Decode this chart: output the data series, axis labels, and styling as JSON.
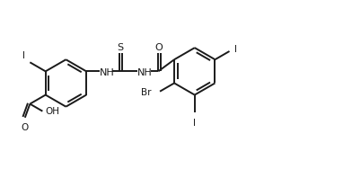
{
  "bg_color": "#ffffff",
  "line_color": "#1a1a1a",
  "line_width": 1.4,
  "font_size": 7.5,
  "fig_width": 3.92,
  "fig_height": 1.98,
  "dpi": 100,
  "xlim": [
    0,
    10
  ],
  "ylim": [
    0,
    5.1
  ]
}
